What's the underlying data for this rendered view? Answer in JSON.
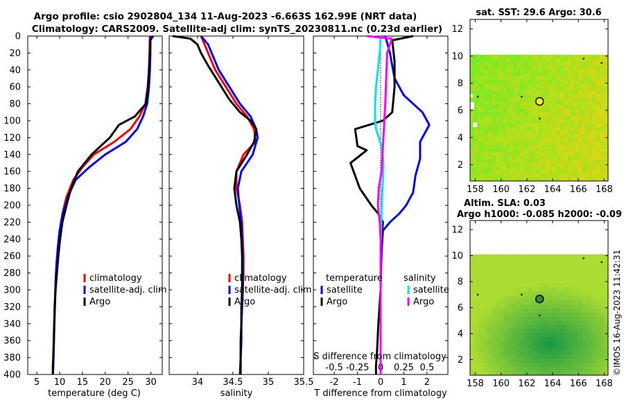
{
  "titles": {
    "line1": "Argo profile: csio 2902804_134 11-Aug-2023 -6.663S 162.99E (NRT data)",
    "line2": "Climatology: CARS2009. Satellite-adj clim: synTS_20230811.nc (0.23d earlier)"
  },
  "side": {
    "sst_title": "sat. SST: 29.6 Argo: 30.6",
    "altim_title": "Altim. SLA: 0.03",
    "altim_subtitle": "Argo h1000: -0.085 h2000: -0.09",
    "map_xticks": [
      "158",
      "160",
      "162",
      "164",
      "166",
      "168"
    ],
    "map_yticks": [
      "2",
      "4",
      "6",
      "8",
      "10",
      "12"
    ],
    "argo_position": {
      "lon": 162.99,
      "lat": 6.663
    }
  },
  "watermark": "©IMOS 16-Aug-2023 11:42:31",
  "depth_ticks": [
    "0",
    "20",
    "40",
    "60",
    "80",
    "100",
    "120",
    "140",
    "160",
    "180",
    "200",
    "220",
    "240",
    "260",
    "280",
    "300",
    "320",
    "340",
    "360",
    "380",
    "400"
  ],
  "colors": {
    "climatology": "#ff0000",
    "satellite": "#0000ff",
    "argo": "#000000",
    "sal_satellite": "#00e5ee",
    "sal_argo": "#ff00ff"
  },
  "chart_data": [
    {
      "type": "line",
      "xlabel": "temperature (deg C)",
      "ylabel": "",
      "xlim": [
        3,
        32.5
      ],
      "ylim": [
        400,
        0
      ],
      "xticks": [
        "5",
        "10",
        "15",
        "20",
        "25",
        "30"
      ],
      "legend": {
        "placement": "lower-right",
        "entries": [
          "climatology",
          "satellite-adj. clim",
          "Argo"
        ]
      },
      "series": [
        {
          "name": "climatology",
          "x": [
            29.8,
            29.7,
            29.6,
            29.3,
            28.8,
            27.5,
            25.5,
            22.0,
            17.5,
            15.0,
            13.0,
            11.5,
            10.6,
            10.0,
            9.6,
            9.4,
            9.2,
            9.0,
            8.9,
            8.8,
            8.7,
            8.6,
            8.5
          ],
          "depth": [
            0,
            20,
            40,
            60,
            80,
            95,
            110,
            125,
            140,
            155,
            170,
            190,
            210,
            230,
            250,
            270,
            290,
            310,
            330,
            350,
            370,
            390,
            400
          ]
        },
        {
          "name": "satellite-adj. clim",
          "x": [
            29.9,
            29.9,
            29.8,
            29.6,
            29.2,
            28.3,
            27.0,
            24.5,
            20.0,
            16.5,
            13.5,
            11.8,
            10.7,
            10.0,
            9.6,
            9.3,
            9.1,
            9.0,
            8.9,
            8.8,
            8.7,
            8.6,
            8.5
          ],
          "depth": [
            0,
            20,
            40,
            60,
            80,
            95,
            110,
            125,
            140,
            155,
            170,
            190,
            210,
            230,
            250,
            270,
            290,
            310,
            330,
            350,
            370,
            390,
            400
          ]
        },
        {
          "name": "Argo",
          "x": [
            30.5,
            29.9,
            29.8,
            29.6,
            29.4,
            28.9,
            26.5,
            23.0,
            21.0,
            17.0,
            14.0,
            12.5,
            11.5,
            10.6,
            10.1,
            9.7,
            9.4,
            9.1,
            8.9,
            8.8,
            8.7,
            8.6,
            8.5,
            8.5,
            8.5
          ],
          "depth": [
            0,
            5,
            20,
            40,
            60,
            80,
            95,
            105,
            120,
            140,
            160,
            180,
            200,
            220,
            240,
            260,
            280,
            300,
            320,
            340,
            360,
            380,
            390,
            395,
            400
          ]
        }
      ]
    },
    {
      "type": "line",
      "xlabel": "salinity",
      "ylabel": "",
      "xlim": [
        33.6,
        35.5
      ],
      "ylim": [
        400,
        0
      ],
      "xticks": [
        "34",
        "34.5",
        "35",
        "35.5"
      ],
      "legend": {
        "placement": "lower-right",
        "entries": [
          "climatology",
          "satellite-adj. clim",
          "Argo"
        ]
      },
      "series": [
        {
          "name": "climatology",
          "x": [
            34.05,
            34.1,
            34.15,
            34.25,
            34.4,
            34.55,
            34.7,
            34.8,
            34.82,
            34.65,
            34.55,
            34.55,
            34.6,
            34.63,
            34.64,
            34.65,
            34.65,
            34.64,
            34.63,
            34.62,
            34.62,
            34.61,
            34.61
          ],
          "depth": [
            0,
            10,
            20,
            40,
            60,
            80,
            95,
            110,
            125,
            140,
            160,
            180,
            200,
            220,
            240,
            260,
            280,
            300,
            320,
            340,
            360,
            380,
            400
          ]
        },
        {
          "name": "satellite-adj. clim",
          "x": [
            34.05,
            34.15,
            34.2,
            34.3,
            34.45,
            34.6,
            34.75,
            34.83,
            34.85,
            34.78,
            34.62,
            34.57,
            34.59,
            34.62,
            34.63,
            34.64,
            34.64,
            34.64,
            34.63,
            34.62,
            34.62,
            34.61,
            34.61
          ],
          "depth": [
            0,
            10,
            20,
            40,
            60,
            80,
            95,
            110,
            120,
            140,
            160,
            180,
            200,
            220,
            240,
            260,
            280,
            300,
            320,
            340,
            360,
            380,
            400
          ]
        },
        {
          "name": "Argo",
          "x": [
            33.65,
            33.9,
            34.0,
            34.05,
            34.15,
            34.3,
            34.45,
            34.6,
            34.75,
            34.83,
            34.8,
            34.7,
            34.55,
            34.52,
            34.55,
            34.6,
            34.62,
            34.63,
            34.63,
            34.63,
            34.62,
            34.62,
            34.61,
            34.61,
            34.6
          ],
          "depth": [
            0,
            3,
            10,
            20,
            35,
            55,
            75,
            90,
            100,
            110,
            125,
            140,
            160,
            180,
            200,
            220,
            240,
            260,
            280,
            300,
            320,
            340,
            360,
            380,
            400
          ]
        }
      ]
    },
    {
      "type": "line",
      "xlabel": "T difference from climatology",
      "ylabel": "",
      "xlim": [
        -2.9,
        2.9
      ],
      "ylim": [
        400,
        0
      ],
      "xticks": [
        "-2",
        "-1",
        "0",
        "1",
        "2"
      ],
      "secondary_axis": {
        "label": "S difference from climatology",
        "ticks": [
          "-0.5",
          "-0.25",
          "0",
          "0.25",
          "0.5"
        ],
        "xlim": [
          -0.725,
          0.725
        ]
      },
      "legend": {
        "placement": "lower-middle",
        "groups": [
          {
            "title": "temperature",
            "entries": [
              "satellite",
              "Argo"
            ]
          },
          {
            "title": "salinity",
            "entries": [
              "satellite",
              "Argo"
            ]
          }
        ]
      },
      "series": [
        {
          "name": "temperature satellite",
          "x": [
            0.2,
            0.4,
            0.6,
            1.0,
            1.8,
            2.1,
            1.7,
            1.7,
            1.5,
            1.4,
            1.1,
            0.8,
            0.4,
            0.1,
            0.05,
            0.02,
            0.0,
            0.0,
            0.0,
            0.0
          ],
          "depth": [
            0,
            20,
            50,
            70,
            90,
            105,
            125,
            145,
            165,
            185,
            200,
            210,
            220,
            230,
            250,
            270,
            300,
            330,
            370,
            400
          ]
        },
        {
          "name": "temperature Argo",
          "x": [
            1.4,
            0.5,
            0.6,
            0.6,
            0.5,
            0.1,
            -1.1,
            -1.0,
            -0.6,
            -1.3,
            -0.9,
            -0.4,
            -0.1,
            0.1,
            0.0,
            0.0,
            -0.1,
            -0.15,
            -0.2,
            -0.2
          ],
          "depth": [
            0,
            5,
            30,
            60,
            90,
            100,
            110,
            130,
            135,
            150,
            180,
            200,
            210,
            220,
            250,
            300,
            340,
            370,
            390,
            400
          ]
        },
        {
          "name": "salinity satellite",
          "x": [
            0.0,
            -0.01,
            -0.03,
            -0.05,
            -0.06,
            -0.06,
            -0.05,
            -0.02,
            0.01,
            0.03,
            0.025,
            0.015,
            0.01,
            0.005,
            0.0,
            0.0,
            0.0,
            0.0
          ],
          "depth": [
            0,
            20,
            40,
            60,
            80,
            100,
            110,
            120,
            130,
            150,
            170,
            190,
            210,
            230,
            250,
            300,
            350,
            400
          ]
        },
        {
          "name": "salinity Argo",
          "x": [
            -0.15,
            0.12,
            0.07,
            0.06,
            0.05,
            0.04,
            0.03,
            0.02,
            0.01,
            -0.02,
            -0.03,
            -0.01,
            0.0,
            0.0,
            0.0,
            0.0
          ],
          "depth": [
            0,
            3,
            20,
            50,
            80,
            100,
            120,
            140,
            160,
            180,
            200,
            220,
            240,
            300,
            350,
            400
          ]
        }
      ]
    }
  ]
}
